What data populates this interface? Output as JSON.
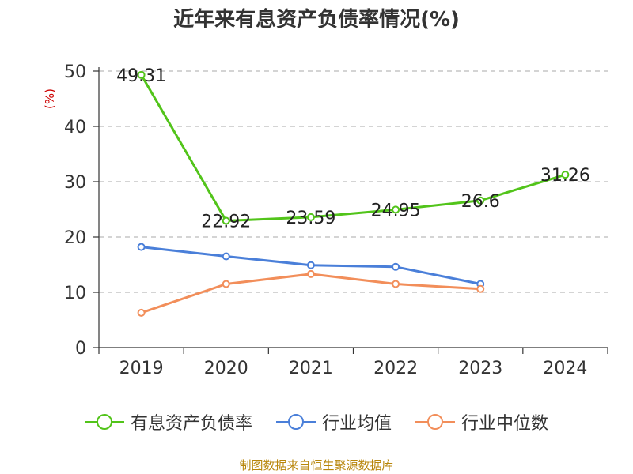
{
  "title": "近年来有息资产负债率情况(%)",
  "source": "制图数据来自恒生聚源数据库",
  "colors": {
    "grid": "#bbbbbb",
    "axis": "#333333",
    "ylabel": "#cc0000",
    "source": "#b8860b"
  },
  "chart_data": {
    "type": "line",
    "title": "近年来有息资产负债率情况(%)",
    "ylabel": "(%)",
    "xlabel": "",
    "categories": [
      "2019",
      "2020",
      "2021",
      "2022",
      "2023",
      "2024"
    ],
    "ylim": [
      0,
      50
    ],
    "yticks": [
      0,
      10,
      20,
      30,
      40,
      50
    ],
    "grid": true,
    "legend_position": "bottom",
    "series": [
      {
        "name": "有息资产负债率",
        "color": "#52c41a",
        "values": [
          49.31,
          22.92,
          23.59,
          24.95,
          26.6,
          31.26
        ],
        "labels": [
          "49.31",
          "22.92",
          "23.59",
          "24.95",
          "26.6",
          "31.26"
        ]
      },
      {
        "name": "行业均值",
        "color": "#4a7fd9",
        "values": [
          18.2,
          16.5,
          14.9,
          14.6,
          11.5,
          null
        ]
      },
      {
        "name": "行业中位数",
        "color": "#f28e5a",
        "values": [
          6.3,
          11.5,
          13.3,
          11.5,
          10.6,
          null
        ]
      }
    ]
  }
}
